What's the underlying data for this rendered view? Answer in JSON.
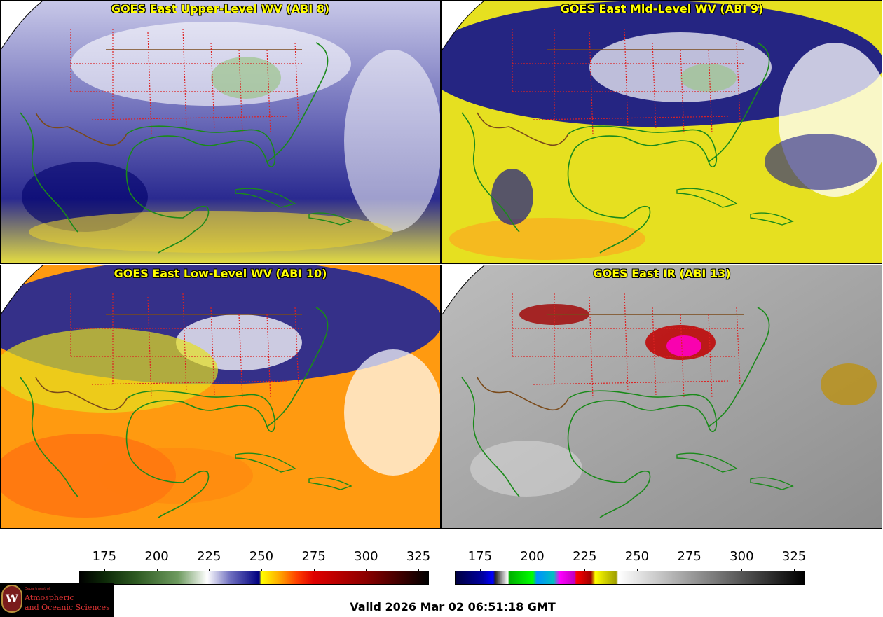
{
  "panels": [
    {
      "title": "GOES East Upper-Level WV (ABI 8)",
      "scheme": "upper"
    },
    {
      "title": "GOES East Mid-Level WV (ABI 9)",
      "scheme": "mid"
    },
    {
      "title": "GOES East Low-Level WV (ABI 10)",
      "scheme": "low"
    },
    {
      "title": "GOES East IR (ABI 13)",
      "scheme": "ir"
    }
  ],
  "colorbars": {
    "wv": {
      "ticks": [
        "175",
        "200",
        "225",
        "250",
        "275",
        "300",
        "325"
      ],
      "range": [
        163,
        330
      ],
      "stops": [
        {
          "v": 163,
          "c": "#000000"
        },
        {
          "v": 175,
          "c": "#0d2a08"
        },
        {
          "v": 190,
          "c": "#2e5a22"
        },
        {
          "v": 210,
          "c": "#6d9a5e"
        },
        {
          "v": 224,
          "c": "#ffffff"
        },
        {
          "v": 235,
          "c": "#7070c0"
        },
        {
          "v": 249,
          "c": "#000080"
        },
        {
          "v": 250,
          "c": "#ffff00"
        },
        {
          "v": 258,
          "c": "#ffb000"
        },
        {
          "v": 267,
          "c": "#ff4000"
        },
        {
          "v": 275,
          "c": "#e00000"
        },
        {
          "v": 300,
          "c": "#8c0000"
        },
        {
          "v": 330,
          "c": "#000000"
        }
      ]
    },
    "ir": {
      "ticks": [
        "175",
        "200",
        "225",
        "250",
        "275",
        "300",
        "325"
      ],
      "range": [
        163,
        330
      ],
      "stops": [
        {
          "v": 163,
          "c": "#000040"
        },
        {
          "v": 176,
          "c": "#0000a0"
        },
        {
          "v": 181,
          "c": "#0000ff"
        },
        {
          "v": 182,
          "c": "#202020"
        },
        {
          "v": 188,
          "c": "#ffffff"
        },
        {
          "v": 189,
          "c": "#00b000"
        },
        {
          "v": 200,
          "c": "#00ff00"
        },
        {
          "v": 202,
          "c": "#0090ff"
        },
        {
          "v": 210,
          "c": "#00c0c0"
        },
        {
          "v": 213,
          "c": "#ff00ff"
        },
        {
          "v": 220,
          "c": "#c000c0"
        },
        {
          "v": 221,
          "c": "#ff0000"
        },
        {
          "v": 228,
          "c": "#a00000"
        },
        {
          "v": 230,
          "c": "#ffff00"
        },
        {
          "v": 240,
          "c": "#a0a000"
        },
        {
          "v": 241,
          "c": "#ffffff"
        },
        {
          "v": 330,
          "c": "#000000"
        }
      ]
    }
  },
  "logo": {
    "seal": "W",
    "dept": "Department of",
    "line1": "Atmospheric",
    "line2": "and Oceanic Sciences"
  },
  "valid_time": "Valid 2026 Mar 02 06:51:18 GMT",
  "colors": {
    "coast": "#1a8a1a",
    "border": "#7a4a1a",
    "state": "#dd2222"
  }
}
